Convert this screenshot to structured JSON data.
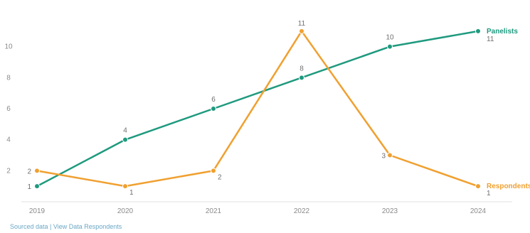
{
  "chart_data": {
    "type": "line",
    "title": "",
    "subtitle": "",
    "xlabel": "",
    "ylabel": "",
    "categories": [
      "2019",
      "2020",
      "2021",
      "2022",
      "2023",
      "2024"
    ],
    "ylim": [
      0,
      12
    ],
    "yticks": [
      2,
      4,
      6,
      8,
      10
    ],
    "grid": false,
    "legend": "series labels at end of lines (right)",
    "series": [
      {
        "name": "Panelists",
        "color": "#1f9a7f",
        "values": [
          1,
          4,
          6,
          8,
          10,
          11
        ]
      },
      {
        "name": "Respondents",
        "color": "#f0a030",
        "values": [
          2,
          1,
          2,
          11,
          3,
          1
        ]
      }
    ]
  },
  "footer": {
    "source": "Sourced data | View Data Respondents"
  }
}
